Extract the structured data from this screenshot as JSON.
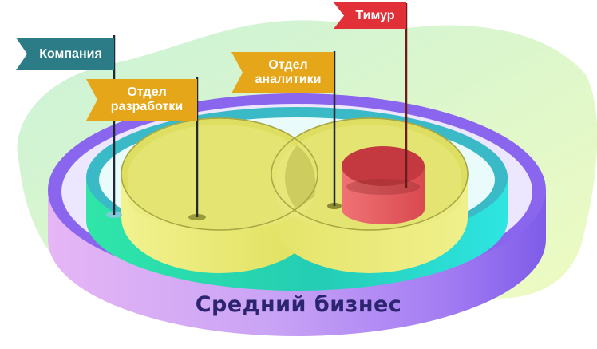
{
  "flags": {
    "company": "Компания",
    "dev": "Отдел\nразработки",
    "analytics": "Отдел\nаналитики",
    "person": "Тимур"
  },
  "segment_label": "Средний бизнес",
  "colors": {
    "outer_ring": "#8f6cf5",
    "middle_ring": "#27d9c8",
    "dept_cylinders": "#e8e86a",
    "person_cylinder": "#e14a4f",
    "teal_flag": "#2b7c86",
    "orange_flag": "#e6a619",
    "red_flag": "#e13037",
    "label_text": "#2d2470"
  }
}
